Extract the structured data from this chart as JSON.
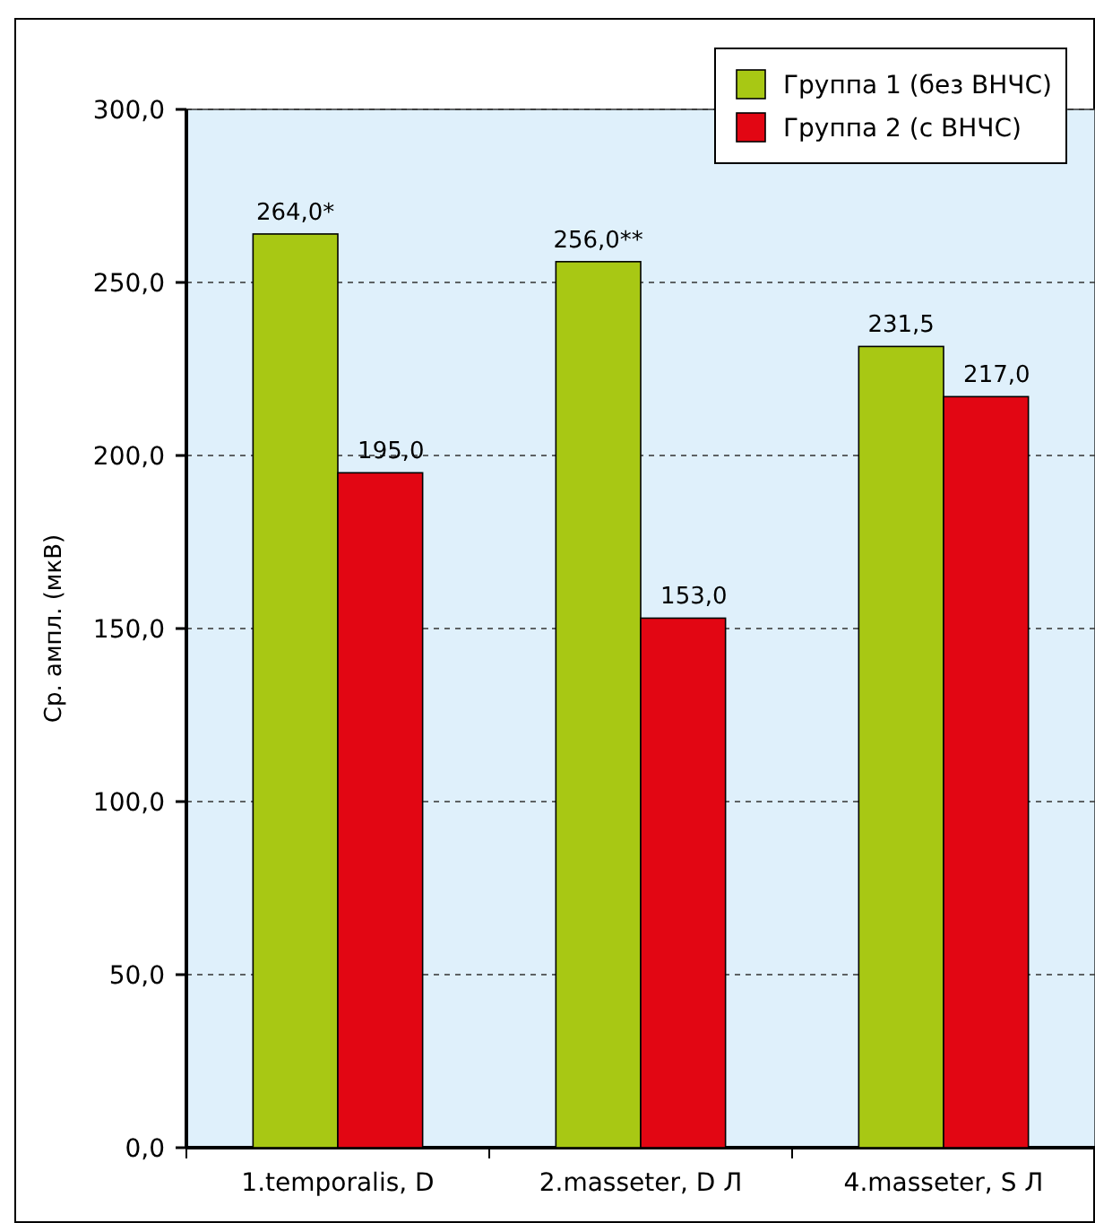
{
  "chart_data": {
    "type": "bar",
    "ylabel": "Ср. ампл. (мкВ)",
    "categories": [
      "1.temporalis, D",
      "2.masseter, D Л",
      "4.masseter, S Л"
    ],
    "series": [
      {
        "name": "Группа 1 (без ВНЧС)",
        "color": "#a8c814",
        "values": [
          264.0,
          256.0,
          231.5
        ],
        "value_labels": [
          "264,0*",
          "256,0**",
          "231,5"
        ]
      },
      {
        "name": "Группа 2 (с ВНЧС)",
        "color": "#e20613",
        "values": [
          195.0,
          153.0,
          217.0
        ],
        "value_labels": [
          "195,0",
          "153,0",
          "217,0"
        ]
      }
    ],
    "ylim": [
      0,
      300
    ],
    "yticks": [
      {
        "value": 0,
        "label": "0,0"
      },
      {
        "value": 50,
        "label": "50,0"
      },
      {
        "value": 100,
        "label": "100,0"
      },
      {
        "value": 150,
        "label": "150,0"
      },
      {
        "value": 200,
        "label": "200,0"
      },
      {
        "value": 250,
        "label": "250,0"
      },
      {
        "value": 300,
        "label": "300,0"
      }
    ],
    "grid": "y",
    "legend": "top right"
  }
}
